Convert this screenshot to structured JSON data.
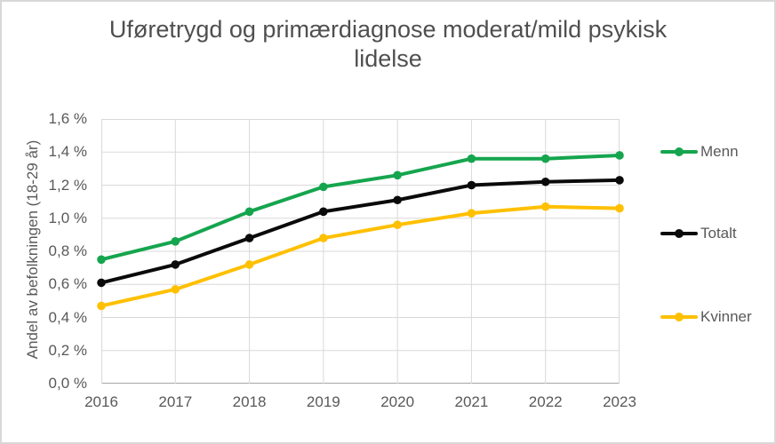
{
  "title": "Uføretrygd og primærdiagnose moderat/mild psykisk lidelse",
  "chart_data": {
    "type": "line",
    "x": [
      "2016",
      "2017",
      "2018",
      "2019",
      "2020",
      "2021",
      "2022",
      "2023"
    ],
    "series": [
      {
        "name": "Menn",
        "color": "#15a54e",
        "values": [
          0.75,
          0.86,
          1.04,
          1.19,
          1.26,
          1.36,
          1.36,
          1.38
        ]
      },
      {
        "name": "Totalt",
        "color": "#0a0a0a",
        "values": [
          0.61,
          0.72,
          0.88,
          1.04,
          1.11,
          1.2,
          1.22,
          1.23
        ]
      },
      {
        "name": "Kvinner",
        "color": "#ffc000",
        "values": [
          0.47,
          0.57,
          0.72,
          0.88,
          0.96,
          1.03,
          1.07,
          1.06
        ]
      }
    ],
    "xlabel": "",
    "ylabel": "Andel av befolkningen (18-29 år)",
    "ylim": [
      0,
      1.6
    ],
    "y_tick_step": 0.2,
    "y_ticks": [
      "0,0 %",
      "0,2 %",
      "0,4 %",
      "0,6 %",
      "0,8 %",
      "1,0 %",
      "1,2 %",
      "1,4 %",
      "1,6 %"
    ],
    "grid": true,
    "legend_position": "right"
  },
  "colors": {
    "grid": "#d9d9d9",
    "axis": "#a6a6a6",
    "tick_text": "#595959",
    "title_text": "#4f4f4f",
    "frame": "#d8d8d8",
    "background": "#ffffff"
  }
}
